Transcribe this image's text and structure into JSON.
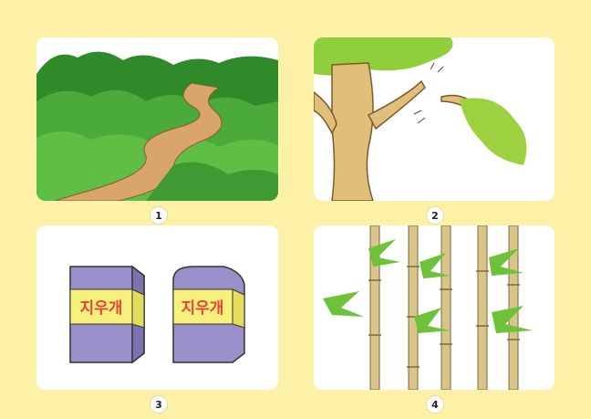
{
  "panels": [
    {
      "number": "1",
      "subject": "forest-path"
    },
    {
      "number": "2",
      "subject": "broken-branch"
    },
    {
      "number": "3",
      "subject": "erasers",
      "label_left": "지우개",
      "label_right": "지우개"
    },
    {
      "number": "4",
      "subject": "bamboo"
    }
  ],
  "colors": {
    "background": "#fdf1a8",
    "panel": "#ffffff",
    "eraser_body": "#9a8fc9",
    "eraser_band": "#f7f07a",
    "eraser_text": "#e8423a"
  }
}
